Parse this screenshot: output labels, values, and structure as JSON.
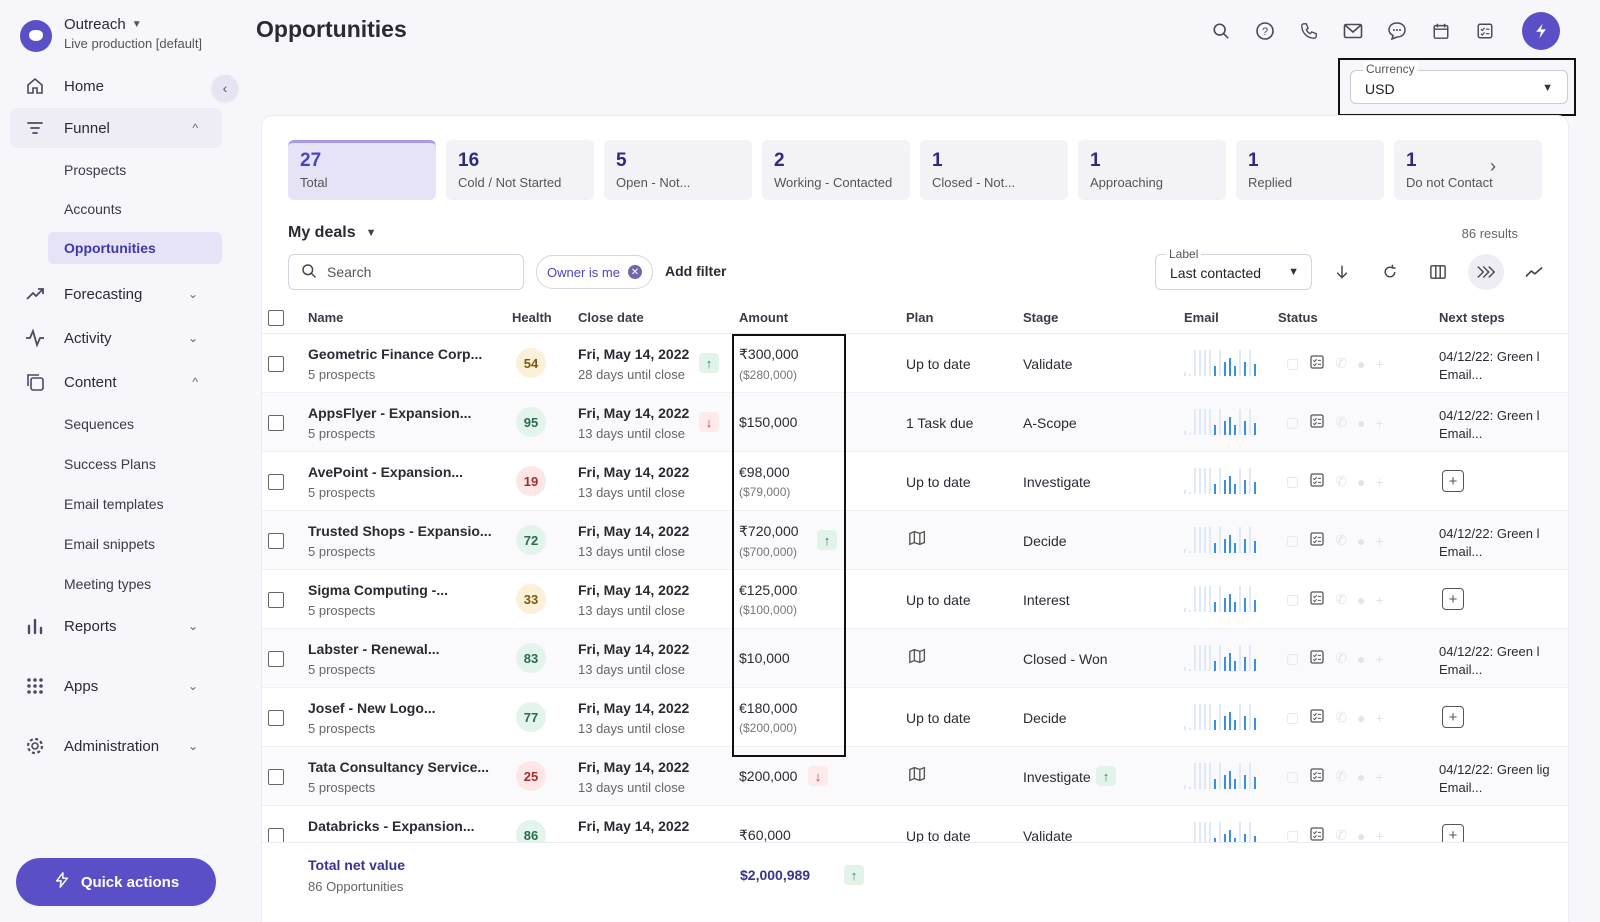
{
  "org": {
    "name": "Outreach",
    "subtitle": "Live production [default]"
  },
  "nav": {
    "home": "Home",
    "funnel": "Funnel",
    "funnel_items": [
      "Prospects",
      "Accounts",
      "Opportunities"
    ],
    "forecasting": "Forecasting",
    "activity": "Activity",
    "content": "Content",
    "content_items": [
      "Sequences",
      "Success Plans",
      "Email templates",
      "Email snippets",
      "Meeting types"
    ],
    "reports": "Reports",
    "apps": "Apps",
    "administration": "Administration",
    "quick_actions": "Quick actions"
  },
  "header": {
    "title": "Opportunities"
  },
  "currency": {
    "label": "Currency",
    "value": "USD"
  },
  "stage_tabs": [
    {
      "count": "27",
      "label": "Total"
    },
    {
      "count": "16",
      "label": "Cold / Not Started"
    },
    {
      "count": "5",
      "label": "Open - Not..."
    },
    {
      "count": "2",
      "label": "Working - Contacted"
    },
    {
      "count": "1",
      "label": "Closed - Not..."
    },
    {
      "count": "1",
      "label": "Approaching"
    },
    {
      "count": "1",
      "label": "Replied"
    },
    {
      "count": "1",
      "label": "Do not Contact"
    }
  ],
  "deals": {
    "view": "My deals",
    "results": "86 results",
    "search_placeholder": "Search",
    "owner_chip": "Owner is me",
    "add_filter": "Add filter",
    "sort_label": "Label",
    "sort_value": "Last contacted"
  },
  "columns": {
    "name": "Name",
    "health": "Health",
    "close_date": "Close date",
    "amount": "Amount",
    "plan": "Plan",
    "stage": "Stage",
    "email": "Email",
    "status": "Status",
    "next_steps": "Next steps"
  },
  "rows": [
    {
      "name": "Geometric Finance Corp...",
      "prospects": "5 prospects",
      "health": "54",
      "health_color": "yellow",
      "date": "Fri, May 14, 2022",
      "until": "28 days until close",
      "date_trend": "up",
      "amount": "₹300,000",
      "amount_sub": "($280,000)",
      "amount_trend": "",
      "plan": "Up to date",
      "plan_icon": false,
      "stage": "Validate",
      "stage_trend": "",
      "next": "04/12/22: Green l",
      "next_sub": "Email...",
      "next_add": false
    },
    {
      "name": "AppsFlyer - Expansion...",
      "prospects": "5 prospects",
      "health": "95",
      "health_color": "green",
      "date": "Fri, May 14, 2022",
      "until": "13 days until close",
      "date_trend": "down",
      "amount": "$150,000",
      "amount_sub": "",
      "amount_trend": "",
      "plan": "1 Task due",
      "plan_icon": false,
      "stage": "A-Scope",
      "stage_trend": "",
      "next": "04/12/22: Green l",
      "next_sub": "Email...",
      "next_add": false
    },
    {
      "name": "AvePoint - Expansion...",
      "prospects": "5 prospects",
      "health": "19",
      "health_color": "red",
      "date": "Fri, May 14, 2022",
      "until": "13 days until close",
      "date_trend": "",
      "amount": "€98,000",
      "amount_sub": "($79,000)",
      "amount_trend": "",
      "plan": "Up to date",
      "plan_icon": false,
      "stage": "Investigate",
      "stage_trend": "",
      "next": "",
      "next_sub": "",
      "next_add": true
    },
    {
      "name": "Trusted Shops - Expansio...",
      "prospects": "5 prospects",
      "health": "72",
      "health_color": "green",
      "date": "Fri, May 14, 2022",
      "until": "13 days until close",
      "date_trend": "",
      "amount": "₹720,000",
      "amount_sub": "($700,000)",
      "amount_trend": "up",
      "plan": "",
      "plan_icon": true,
      "stage": "Decide",
      "stage_trend": "",
      "next": "04/12/22: Green l",
      "next_sub": "Email...",
      "next_add": false
    },
    {
      "name": "Sigma Computing -...",
      "prospects": "5 prospects",
      "health": "33",
      "health_color": "yellow",
      "date": "Fri, May 14, 2022",
      "until": "13 days until close",
      "date_trend": "",
      "amount": "€125,000",
      "amount_sub": "($100,000)",
      "amount_trend": "",
      "plan": "Up to date",
      "plan_icon": false,
      "stage": "Interest",
      "stage_trend": "",
      "next": "",
      "next_sub": "",
      "next_add": true
    },
    {
      "name": "Labster - Renewal...",
      "prospects": "5 prospects",
      "health": "83",
      "health_color": "green",
      "date": "Fri, May 14, 2022",
      "until": "13 days until close",
      "date_trend": "",
      "amount": "$10,000",
      "amount_sub": "",
      "amount_trend": "",
      "plan": "",
      "plan_icon": true,
      "stage": "Closed - Won",
      "stage_trend": "",
      "next": "04/12/22: Green l",
      "next_sub": "Email...",
      "next_add": false
    },
    {
      "name": "Josef - New Logo...",
      "prospects": "5 prospects",
      "health": "77",
      "health_color": "green",
      "date": "Fri, May 14, 2022",
      "until": "13 days until close",
      "date_trend": "",
      "amount": "€180,000",
      "amount_sub": "($200,000)",
      "amount_trend": "",
      "plan": "Up to date",
      "plan_icon": false,
      "stage": "Decide",
      "stage_trend": "",
      "next": "",
      "next_sub": "",
      "next_add": true
    },
    {
      "name": "Tata Consultancy Service...",
      "prospects": "5 prospects",
      "health": "25",
      "health_color": "red",
      "date": "Fri, May 14, 2022",
      "until": "13 days until close",
      "date_trend": "",
      "amount": "$200,000",
      "amount_sub": "",
      "amount_trend": "down",
      "plan": "",
      "plan_icon": true,
      "stage": "Investigate",
      "stage_trend": "up",
      "next": "04/12/22: Green lig",
      "next_sub": "Email...",
      "next_add": false
    },
    {
      "name": "Databricks - Expansion...",
      "prospects": "",
      "health": "86",
      "health_color": "green",
      "date": "Fri, May 14, 2022",
      "until": "",
      "date_trend": "",
      "amount": "₹60,000",
      "amount_sub": "",
      "amount_trend": "",
      "plan": "Up to date",
      "plan_icon": false,
      "stage": "Validate",
      "stage_trend": "",
      "next": "",
      "next_sub": "",
      "next_add": true
    }
  ],
  "footer": {
    "title": "Total net value",
    "sub": "86 Opportunities",
    "total": "$2,000,989"
  },
  "colors": {
    "accent": "#5b4fc7",
    "trend_up": "#2a8a5c",
    "trend_down": "#c23b3b"
  }
}
